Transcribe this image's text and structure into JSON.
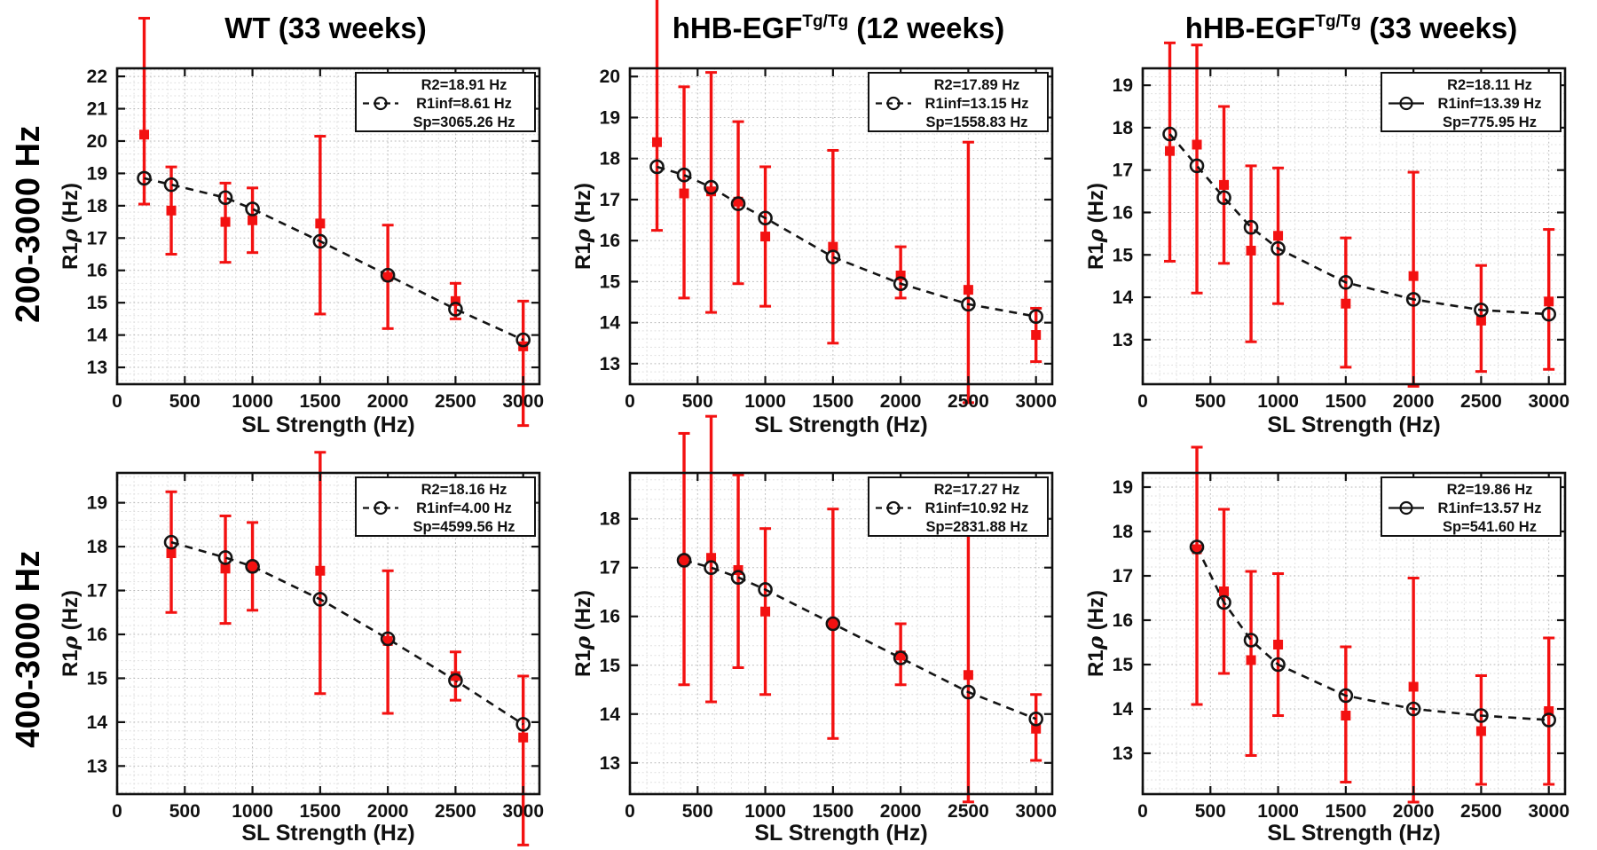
{
  "figure": {
    "row_labels": [
      "200-3000 Hz",
      "400-3000 Hz"
    ],
    "column_titles": [
      {
        "main": "WT",
        "sup": "",
        "tail": " (33 weeks)"
      },
      {
        "main": "hHB-EGF",
        "sup": "Tg/Tg",
        "tail": " (12 weeks)"
      },
      {
        "main": "hHB-EGF",
        "sup": "Tg/Tg",
        "tail": " (33 weeks)"
      }
    ],
    "xlabel": "SL Strength (Hz)",
    "ylabel": {
      "pre": "R1",
      "rho": "ρ",
      "post": " (Hz)"
    },
    "colors": {
      "data_red": "#f31111",
      "fit_black": "#141414",
      "axis_black": "#111111",
      "grid_major": "#b9b9b9",
      "grid_minor": "#dddddd"
    }
  },
  "chart_data": [
    {
      "type": "scatter",
      "row": 0,
      "col": 0,
      "title": "WT (33 weeks)",
      "range_label": "200-3000 Hz",
      "legend": {
        "lines": [
          "R2=18.91 Hz",
          "R1inf=8.61 Hz",
          "Sp=3065.26 Hz"
        ],
        "marker_line": "dashed"
      },
      "xlabel": "SL Strength (Hz)",
      "ylabel": "R1ρ (Hz)",
      "xlim": [
        0,
        3120
      ],
      "xticks": [
        0,
        500,
        1000,
        1500,
        2000,
        2500,
        3000
      ],
      "ylim": [
        12.48,
        22.25
      ],
      "yticks": [
        13,
        14,
        15,
        16,
        17,
        18,
        19,
        20,
        21,
        22
      ],
      "measured": {
        "x": [
          200,
          400,
          800,
          1000,
          1500,
          2000,
          2500,
          3000
        ],
        "y": [
          20.2,
          17.85,
          17.5,
          17.55,
          17.45,
          15.8,
          15.05,
          13.65
        ],
        "err_lo": [
          18.05,
          16.5,
          16.25,
          16.55,
          14.65,
          14.2,
          14.5,
          11.2
        ],
        "err_hi": [
          23.8,
          19.2,
          18.7,
          18.55,
          20.15,
          17.4,
          15.6,
          15.05
        ]
      },
      "fit": {
        "x": [
          200,
          400,
          800,
          1000,
          1500,
          2000,
          2500,
          3000
        ],
        "y": [
          18.85,
          18.65,
          18.25,
          17.9,
          16.9,
          15.85,
          14.8,
          13.85
        ]
      }
    },
    {
      "type": "scatter",
      "row": 0,
      "col": 1,
      "title": "hHB-EGF Tg/Tg (12 weeks)",
      "range_label": "200-3000 Hz",
      "legend": {
        "lines": [
          "R2=17.89 Hz",
          "R1inf=13.15 Hz",
          "Sp=1558.83 Hz"
        ],
        "marker_line": "dashed"
      },
      "xlabel": "SL Strength (Hz)",
      "ylabel": "R1ρ (Hz)",
      "xlim": [
        0,
        3120
      ],
      "xticks": [
        0,
        500,
        1000,
        1500,
        2000,
        2500,
        3000
      ],
      "ylim": [
        12.5,
        20.2
      ],
      "yticks": [
        13,
        14,
        15,
        16,
        17,
        18,
        19,
        20
      ],
      "measured": {
        "x": [
          200,
          400,
          600,
          800,
          1000,
          1500,
          2000,
          2500,
          3000
        ],
        "y": [
          18.4,
          17.15,
          17.2,
          16.95,
          16.1,
          15.85,
          15.15,
          14.8,
          13.7
        ],
        "err_lo": [
          16.25,
          14.6,
          14.25,
          14.95,
          14.4,
          13.5,
          14.6,
          12.05,
          13.05
        ],
        "err_hi": [
          21.9,
          19.75,
          20.1,
          18.9,
          17.8,
          18.2,
          15.85,
          18.4,
          14.35
        ]
      },
      "fit": {
        "x": [
          200,
          400,
          600,
          800,
          1000,
          1500,
          2000,
          2500,
          3000
        ],
        "y": [
          17.8,
          17.6,
          17.3,
          16.9,
          16.55,
          15.6,
          14.95,
          14.45,
          14.15
        ]
      }
    },
    {
      "type": "scatter",
      "row": 0,
      "col": 2,
      "title": "hHB-EGF Tg/Tg (33 weeks)",
      "range_label": "200-3000 Hz",
      "legend": {
        "lines": [
          "R2=18.11 Hz",
          "R1inf=13.39 Hz",
          "Sp=775.95 Hz"
        ],
        "marker_line": "solid"
      },
      "xlabel": "SL Strength (Hz)",
      "ylabel": "R1ρ (Hz)",
      "xlim": [
        0,
        3120
      ],
      "xticks": [
        0,
        500,
        1000,
        1500,
        2000,
        2500,
        3000
      ],
      "ylim": [
        11.95,
        19.4
      ],
      "yticks": [
        13,
        14,
        15,
        16,
        17,
        18,
        19
      ],
      "measured": {
        "x": [
          200,
          400,
          600,
          800,
          1000,
          1500,
          2000,
          2500,
          3000
        ],
        "y": [
          17.45,
          17.6,
          16.65,
          15.1,
          15.45,
          13.85,
          14.5,
          13.45,
          13.9
        ],
        "err_lo": [
          14.85,
          14.1,
          14.8,
          12.95,
          13.85,
          12.35,
          11.9,
          12.25,
          12.3
        ],
        "err_hi": [
          20.0,
          19.95,
          18.5,
          17.1,
          17.05,
          15.4,
          16.95,
          14.75,
          15.6
        ]
      },
      "fit": {
        "x": [
          200,
          400,
          600,
          800,
          1000,
          1500,
          2000,
          2500,
          3000
        ],
        "y": [
          17.85,
          17.1,
          16.35,
          15.65,
          15.15,
          14.35,
          13.95,
          13.7,
          13.6
        ]
      }
    },
    {
      "type": "scatter",
      "row": 1,
      "col": 0,
      "title": "WT (33 weeks)",
      "range_label": "400-3000 Hz",
      "legend": {
        "lines": [
          "R2=18.16 Hz",
          "R1inf=4.00 Hz",
          "Sp=4599.56 Hz"
        ],
        "marker_line": "dashed"
      },
      "xlabel": "SL Strength (Hz)",
      "ylabel": "R1ρ (Hz)",
      "xlim": [
        0,
        3120
      ],
      "xticks": [
        0,
        500,
        1000,
        1500,
        2000,
        2500,
        3000
      ],
      "ylim": [
        12.36,
        19.68
      ],
      "yticks": [
        13,
        14,
        15,
        16,
        17,
        18,
        19
      ],
      "measured": {
        "x": [
          400,
          800,
          1000,
          1500,
          2000,
          2500,
          3000
        ],
        "y": [
          17.85,
          17.5,
          17.55,
          17.45,
          15.85,
          15.05,
          13.65
        ],
        "err_lo": [
          16.5,
          16.25,
          16.55,
          14.65,
          14.2,
          14.5,
          11.2
        ],
        "err_hi": [
          19.25,
          18.7,
          18.55,
          20.15,
          17.45,
          15.6,
          15.05
        ]
      },
      "fit": {
        "x": [
          400,
          800,
          1000,
          1500,
          2000,
          2500,
          3000
        ],
        "y": [
          18.1,
          17.75,
          17.55,
          16.8,
          15.9,
          14.95,
          13.95
        ]
      }
    },
    {
      "type": "scatter",
      "row": 1,
      "col": 1,
      "title": "hHB-EGF Tg/Tg (12 weeks)",
      "range_label": "400-3000 Hz",
      "legend": {
        "lines": [
          "R2=17.27 Hz",
          "R1inf=10.92 Hz",
          "Sp=2831.88 Hz"
        ],
        "marker_line": "dashed"
      },
      "xlabel": "SL Strength (Hz)",
      "ylabel": "R1ρ (Hz)",
      "xlim": [
        0,
        3120
      ],
      "xticks": [
        0,
        500,
        1000,
        1500,
        2000,
        2500,
        3000
      ],
      "ylim": [
        12.36,
        18.94
      ],
      "yticks": [
        13,
        14,
        15,
        16,
        17,
        18
      ],
      "measured": {
        "x": [
          400,
          600,
          800,
          1000,
          1500,
          2000,
          2500,
          3000
        ],
        "y": [
          17.15,
          17.2,
          16.95,
          16.1,
          15.85,
          15.2,
          14.8,
          13.7
        ],
        "err_lo": [
          14.6,
          14.25,
          14.95,
          14.4,
          13.5,
          14.6,
          12.2,
          13.05
        ],
        "err_hi": [
          19.75,
          20.1,
          18.9,
          17.8,
          18.2,
          15.85,
          17.75,
          14.4
        ]
      },
      "fit": {
        "x": [
          400,
          600,
          800,
          1000,
          1500,
          2000,
          2500,
          3000
        ],
        "y": [
          17.15,
          17.0,
          16.8,
          16.55,
          15.85,
          15.15,
          14.45,
          13.9
        ]
      }
    },
    {
      "type": "scatter",
      "row": 1,
      "col": 2,
      "title": "hHB-EGF Tg/Tg (33 weeks)",
      "range_label": "400-3000 Hz",
      "legend": {
        "lines": [
          "R2=19.86 Hz",
          "R1inf=13.57 Hz",
          "Sp=541.60 Hz"
        ],
        "marker_line": "solid"
      },
      "xlabel": "SL Strength (Hz)",
      "ylabel": "R1ρ (Hz)",
      "xlim": [
        0,
        3120
      ],
      "xticks": [
        0,
        500,
        1000,
        1500,
        2000,
        2500,
        3000
      ],
      "ylim": [
        12.08,
        19.32
      ],
      "yticks": [
        13,
        14,
        15,
        16,
        17,
        18,
        19
      ],
      "measured": {
        "x": [
          400,
          600,
          800,
          1000,
          1500,
          2000,
          2500,
          3000
        ],
        "y": [
          17.6,
          16.65,
          15.1,
          15.45,
          13.85,
          14.5,
          13.5,
          13.95
        ],
        "err_lo": [
          14.1,
          14.8,
          12.95,
          13.85,
          12.35,
          11.9,
          12.3,
          12.3
        ],
        "err_hi": [
          19.9,
          18.5,
          17.1,
          17.05,
          15.4,
          16.95,
          14.75,
          15.6
        ]
      },
      "fit": {
        "x": [
          400,
          600,
          800,
          1000,
          1500,
          2000,
          2500,
          3000
        ],
        "y": [
          17.65,
          16.4,
          15.55,
          15.0,
          14.3,
          14.0,
          13.85,
          13.75
        ]
      }
    }
  ]
}
